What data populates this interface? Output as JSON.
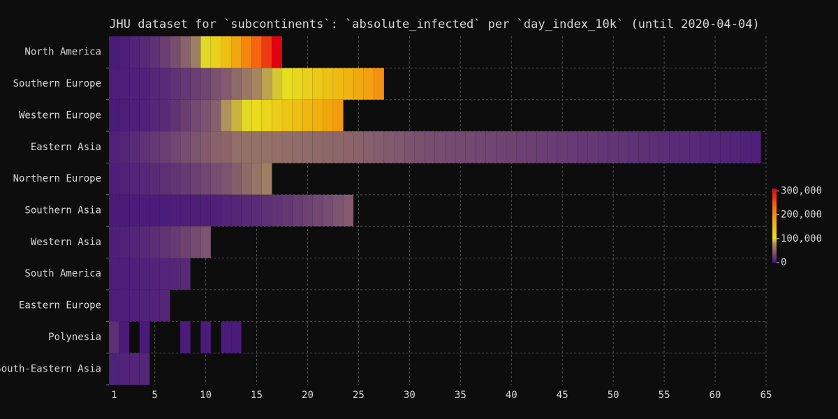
{
  "chart_data": {
    "type": "heatmap",
    "title": "JHU dataset for `subcontinents`: `absolute_infected` per `day_index_10k` (until 2020-04-04)",
    "categories": [
      "North America",
      "Southern Europe",
      "Western Europe",
      "Eastern Asia",
      "Northern Europe",
      "Southern Asia",
      "Western Asia",
      "South America",
      "Eastern Europe",
      "Polynesia",
      "South-Eastern Asia"
    ],
    "x": [
      1,
      2,
      3,
      4,
      5,
      6,
      7,
      8,
      9,
      10,
      11,
      12,
      13,
      14,
      15,
      16,
      17,
      18,
      19,
      20,
      21,
      22,
      23,
      24,
      25,
      26,
      27,
      28,
      29,
      30,
      31,
      32,
      33,
      34,
      35,
      36,
      37,
      38,
      39,
      40,
      41,
      42,
      43,
      44,
      45,
      46,
      47,
      48,
      49,
      50,
      51,
      52,
      53,
      54,
      55,
      56,
      57,
      58,
      59,
      60,
      61,
      62,
      63,
      64
    ],
    "xlim": [
      0.5,
      65
    ],
    "xticks": [
      1,
      5,
      10,
      15,
      20,
      25,
      30,
      35,
      40,
      45,
      50,
      55,
      60,
      65
    ],
    "grid": true,
    "clim": [
      0,
      310000
    ],
    "cticks": [
      0,
      {
        "value": 100000,
        "label": "100,000"
      },
      {
        "value": 200000,
        "label": "200,000"
      },
      {
        "value": 300000,
        "label": "300,000"
      }
    ],
    "colorscale": [
      [
        0,
        "#4a1a7a"
      ],
      [
        0.12,
        "#7a5070"
      ],
      [
        0.25,
        "#a88a60"
      ],
      [
        0.33,
        "#e8e020"
      ],
      [
        0.55,
        "#f0b010"
      ],
      [
        0.75,
        "#f87010"
      ],
      [
        1,
        "#e00010"
      ]
    ],
    "series": [
      {
        "name": "North America",
        "values": [
          1000,
          3000,
          6000,
          10000,
          16000,
          25000,
          36000,
          50000,
          70000,
          100000,
          125000,
          150000,
          180000,
          210000,
          240000,
          270000,
          310000,
          null,
          null,
          null,
          null,
          null,
          null,
          null,
          null,
          null,
          null,
          null,
          null,
          null,
          null,
          null,
          null,
          null,
          null,
          null,
          null,
          null,
          null,
          null,
          null,
          null,
          null,
          null,
          null,
          null,
          null,
          null,
          null,
          null,
          null,
          null,
          null,
          null,
          null,
          null,
          null,
          null,
          null,
          null,
          null,
          null,
          null,
          null
        ]
      },
      {
        "name": "Southern Europe",
        "values": [
          2000,
          3000,
          4000,
          5000,
          8000,
          12000,
          16000,
          20000,
          25000,
          30000,
          38000,
          45000,
          55000,
          65000,
          75000,
          85000,
          95000,
          105000,
          115000,
          125000,
          135000,
          145000,
          155000,
          165000,
          175000,
          185000,
          200000,
          null,
          null,
          null,
          null,
          null,
          null,
          null,
          null,
          null,
          null,
          null,
          null,
          null,
          null,
          null,
          null,
          null,
          null,
          null,
          null,
          null,
          null,
          null,
          null,
          null,
          null,
          null,
          null,
          null,
          null,
          null,
          null,
          null,
          null,
          null,
          null,
          null
        ]
      },
      {
        "name": "Western Europe",
        "values": [
          1000,
          2000,
          3000,
          5000,
          8000,
          12000,
          17000,
          25000,
          32000,
          40000,
          48000,
          80000,
          90000,
          100000,
          110000,
          120000,
          130000,
          140000,
          150000,
          160000,
          170000,
          180000,
          190000,
          null,
          null,
          null,
          null,
          null,
          null,
          null,
          null,
          null,
          null,
          null,
          null,
          null,
          null,
          null,
          null,
          null,
          null,
          null,
          null,
          null,
          null,
          null,
          null,
          null,
          null,
          null,
          null,
          null,
          null,
          null,
          null,
          null,
          null,
          null,
          null,
          null,
          null,
          null,
          null,
          null
        ]
      },
      {
        "name": "Eastern Asia",
        "values": [
          5000,
          8000,
          12000,
          16000,
          20000,
          25000,
          30000,
          35000,
          40000,
          45000,
          50000,
          52000,
          58000,
          60000,
          60000,
          60000,
          59000,
          58000,
          57000,
          56000,
          55000,
          54000,
          53000,
          52000,
          50000,
          48000,
          46000,
          44000,
          42000,
          40000,
          38000,
          36000,
          35000,
          34000,
          33000,
          32000,
          31000,
          30000,
          29000,
          28000,
          27000,
          26000,
          25000,
          24000,
          23000,
          22000,
          21000,
          20000,
          19000,
          18000,
          17000,
          16000,
          15000,
          14000,
          13000,
          12000,
          11000,
          10000,
          9000,
          8000,
          7000,
          6000,
          5000,
          4000
        ]
      },
      {
        "name": "Northern Europe",
        "values": [
          3000,
          5000,
          7000,
          9000,
          12000,
          15000,
          18000,
          22000,
          26000,
          30000,
          35000,
          40000,
          47000,
          55000,
          62000,
          70000,
          null,
          null,
          null,
          null,
          null,
          null,
          null,
          null,
          null,
          null,
          null,
          null,
          null,
          null,
          null,
          null,
          null,
          null,
          null,
          null,
          null,
          null,
          null,
          null,
          null,
          null,
          null,
          null,
          null,
          null,
          null,
          null,
          null,
          null,
          null,
          null,
          null,
          null,
          null,
          null,
          null,
          null,
          null,
          null,
          null,
          null,
          null,
          null
        ]
      },
      {
        "name": "Southern Asia",
        "values": [
          500,
          700,
          900,
          1100,
          1300,
          1600,
          2000,
          2500,
          3000,
          3500,
          4500,
          6000,
          8000,
          10000,
          12000,
          15000,
          18000,
          21000,
          24000,
          27000,
          31000,
          35000,
          40000,
          45000,
          null,
          null,
          null,
          null,
          null,
          null,
          null,
          null,
          null,
          null,
          null,
          null,
          null,
          null,
          null,
          null,
          null,
          null,
          null,
          null,
          null,
          null,
          null,
          null,
          null,
          null,
          null,
          null,
          null,
          null,
          null,
          null,
          null,
          null,
          null,
          null,
          null,
          null,
          null,
          null
        ]
      },
      {
        "name": "Western Asia",
        "values": [
          3000,
          5000,
          7000,
          10000,
          13000,
          17000,
          22000,
          28000,
          34000,
          40000,
          null,
          null,
          null,
          null,
          null,
          null,
          null,
          null,
          null,
          null,
          null,
          null,
          null,
          null,
          null,
          null,
          null,
          null,
          null,
          null,
          null,
          null,
          null,
          null,
          null,
          null,
          null,
          null,
          null,
          null,
          null,
          null,
          null,
          null,
          null,
          null,
          null,
          null,
          null,
          null,
          null,
          null,
          null,
          null,
          null,
          null,
          null,
          null,
          null,
          null,
          null,
          null,
          null,
          null
        ]
      },
      {
        "name": "South America",
        "values": [
          2000,
          3000,
          4000,
          5000,
          6000,
          7000,
          8500,
          10000,
          null,
          null,
          null,
          null,
          null,
          null,
          null,
          null,
          null,
          null,
          null,
          null,
          null,
          null,
          null,
          null,
          null,
          null,
          null,
          null,
          null,
          null,
          null,
          null,
          null,
          null,
          null,
          null,
          null,
          null,
          null,
          null,
          null,
          null,
          null,
          null,
          null,
          null,
          null,
          null,
          null,
          null,
          null,
          null,
          null,
          null,
          null,
          null,
          null,
          null,
          null,
          null,
          null,
          null,
          null,
          null
        ]
      },
      {
        "name": "Eastern Europe",
        "values": [
          2000,
          3000,
          4000,
          5000,
          6500,
          8000,
          null,
          null,
          null,
          null,
          null,
          null,
          null,
          null,
          null,
          null,
          null,
          null,
          null,
          null,
          null,
          null,
          null,
          null,
          null,
          null,
          null,
          null,
          null,
          null,
          null,
          null,
          null,
          null,
          null,
          null,
          null,
          null,
          null,
          null,
          null,
          null,
          null,
          null,
          null,
          null,
          null,
          null,
          null,
          null,
          null,
          null,
          null,
          null,
          null,
          null,
          null,
          null,
          null,
          null,
          null,
          null,
          null,
          null
        ]
      },
      {
        "name": "Polynesia",
        "values": [
          15000,
          500,
          null,
          500,
          null,
          null,
          null,
          500,
          null,
          500,
          null,
          500,
          500,
          null,
          null,
          null,
          null,
          null,
          null,
          null,
          null,
          null,
          null,
          null,
          null,
          null,
          null,
          null,
          null,
          null,
          null,
          null,
          null,
          null,
          null,
          null,
          null,
          null,
          null,
          null,
          null,
          null,
          null,
          null,
          null,
          null,
          null,
          null,
          null,
          null,
          null,
          null,
          null,
          null,
          null,
          null,
          null,
          null,
          null,
          null,
          null,
          null,
          null,
          null
        ]
      },
      {
        "name": "South-Eastern Asia",
        "values": [
          5000,
          6000,
          7000,
          8000,
          null,
          null,
          null,
          null,
          null,
          null,
          null,
          null,
          null,
          null,
          null,
          null,
          null,
          null,
          null,
          null,
          null,
          null,
          null,
          null,
          null,
          null,
          null,
          null,
          null,
          null,
          null,
          null,
          null,
          null,
          null,
          null,
          null,
          null,
          null,
          null,
          null,
          null,
          null,
          null,
          null,
          null,
          null,
          null,
          null,
          null,
          null,
          null,
          null,
          null,
          null,
          null,
          null,
          null,
          null,
          null,
          null,
          null,
          null,
          null
        ]
      }
    ]
  }
}
